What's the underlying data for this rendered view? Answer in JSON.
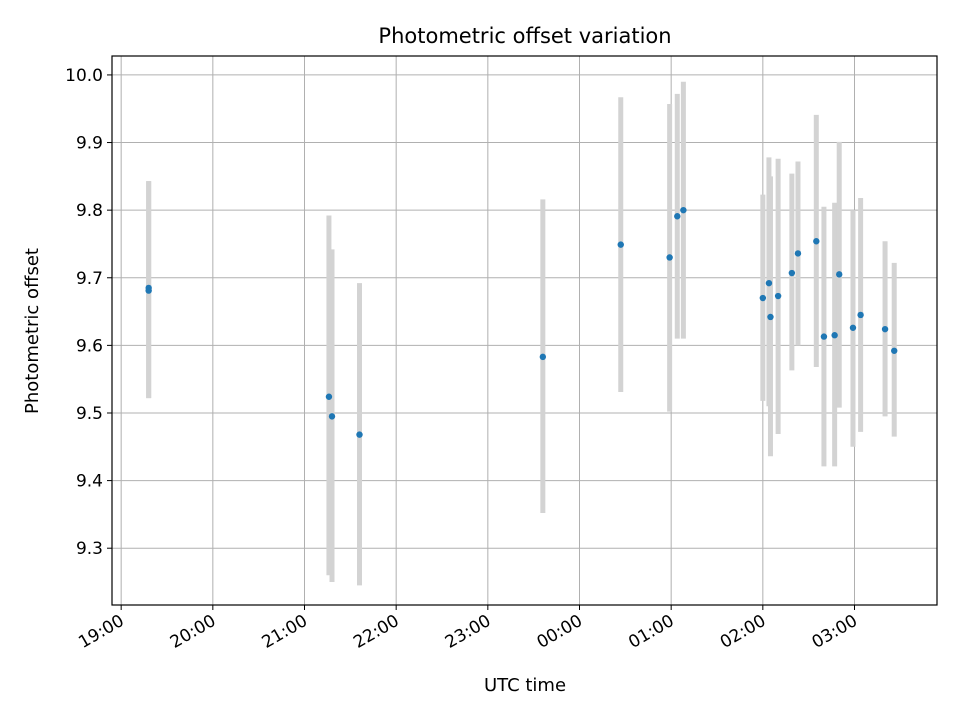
{
  "chart_data": {
    "type": "scatter",
    "title": "Photometric offset variation",
    "xlabel": "UTC time",
    "ylabel": "Photometric offset",
    "x_tick_labels": [
      "19:00",
      "20:00",
      "21:00",
      "22:00",
      "23:00",
      "00:00",
      "01:00",
      "02:00",
      "03:00"
    ],
    "x_tick_hours": [
      0,
      1,
      2,
      3,
      4,
      5,
      6,
      7,
      8
    ],
    "y_ticks": [
      9.3,
      9.4,
      9.5,
      9.6,
      9.7,
      9.8,
      9.9,
      10.0
    ],
    "y_tick_labels": [
      "9.3",
      "9.4",
      "9.5",
      "9.6",
      "9.7",
      "9.8",
      "9.9",
      "10.0"
    ],
    "xlim_hours": [
      -0.1,
      8.9
    ],
    "ylim": [
      9.216,
      10.028
    ],
    "grid": true,
    "marker_color": "#1f77b4",
    "errorbar_color": "#d3d3d3",
    "series": [
      {
        "points": [
          {
            "time": "19:18",
            "y": 9.685,
            "ylo": 9.522,
            "yhi": 9.843
          },
          {
            "time": "19:18",
            "y": 9.681,
            "ylo": 9.522,
            "yhi": 9.843
          },
          {
            "time": "21:16",
            "y": 9.524,
            "ylo": 9.26,
            "yhi": 9.792
          },
          {
            "time": "21:18",
            "y": 9.495,
            "ylo": 9.25,
            "yhi": 9.742
          },
          {
            "time": "21:36",
            "y": 9.468,
            "ylo": 9.245,
            "yhi": 9.692
          },
          {
            "time": "23:36",
            "y": 9.583,
            "ylo": 9.352,
            "yhi": 9.816
          },
          {
            "time": "00:27",
            "y": 9.749,
            "ylo": 9.531,
            "yhi": 9.967
          },
          {
            "time": "00:59",
            "y": 9.73,
            "ylo": 9.502,
            "yhi": 9.957
          },
          {
            "time": "01:04",
            "y": 9.791,
            "ylo": 9.61,
            "yhi": 9.972
          },
          {
            "time": "01:08",
            "y": 9.8,
            "ylo": 9.61,
            "yhi": 9.99
          },
          {
            "time": "02:00",
            "y": 9.67,
            "ylo": 9.518,
            "yhi": 9.823
          },
          {
            "time": "02:04",
            "y": 9.692,
            "ylo": 9.51,
            "yhi": 9.878
          },
          {
            "time": "02:05",
            "y": 9.642,
            "ylo": 9.436,
            "yhi": 9.85
          },
          {
            "time": "02:10",
            "y": 9.673,
            "ylo": 9.469,
            "yhi": 9.876
          },
          {
            "time": "02:19",
            "y": 9.707,
            "ylo": 9.563,
            "yhi": 9.854
          },
          {
            "time": "02:23",
            "y": 9.736,
            "ylo": 9.6,
            "yhi": 9.872
          },
          {
            "time": "02:35",
            "y": 9.754,
            "ylo": 9.568,
            "yhi": 9.941
          },
          {
            "time": "02:40",
            "y": 9.613,
            "ylo": 9.421,
            "yhi": 9.805
          },
          {
            "time": "02:47",
            "y": 9.615,
            "ylo": 9.421,
            "yhi": 9.811
          },
          {
            "time": "02:50",
            "y": 9.705,
            "ylo": 9.508,
            "yhi": 9.901
          },
          {
            "time": "02:59",
            "y": 9.626,
            "ylo": 9.45,
            "yhi": 9.8
          },
          {
            "time": "03:04",
            "y": 9.645,
            "ylo": 9.472,
            "yhi": 9.818
          },
          {
            "time": "03:20",
            "y": 9.624,
            "ylo": 9.495,
            "yhi": 9.754
          },
          {
            "time": "03:26",
            "y": 9.592,
            "ylo": 9.465,
            "yhi": 9.722
          }
        ]
      }
    ]
  }
}
